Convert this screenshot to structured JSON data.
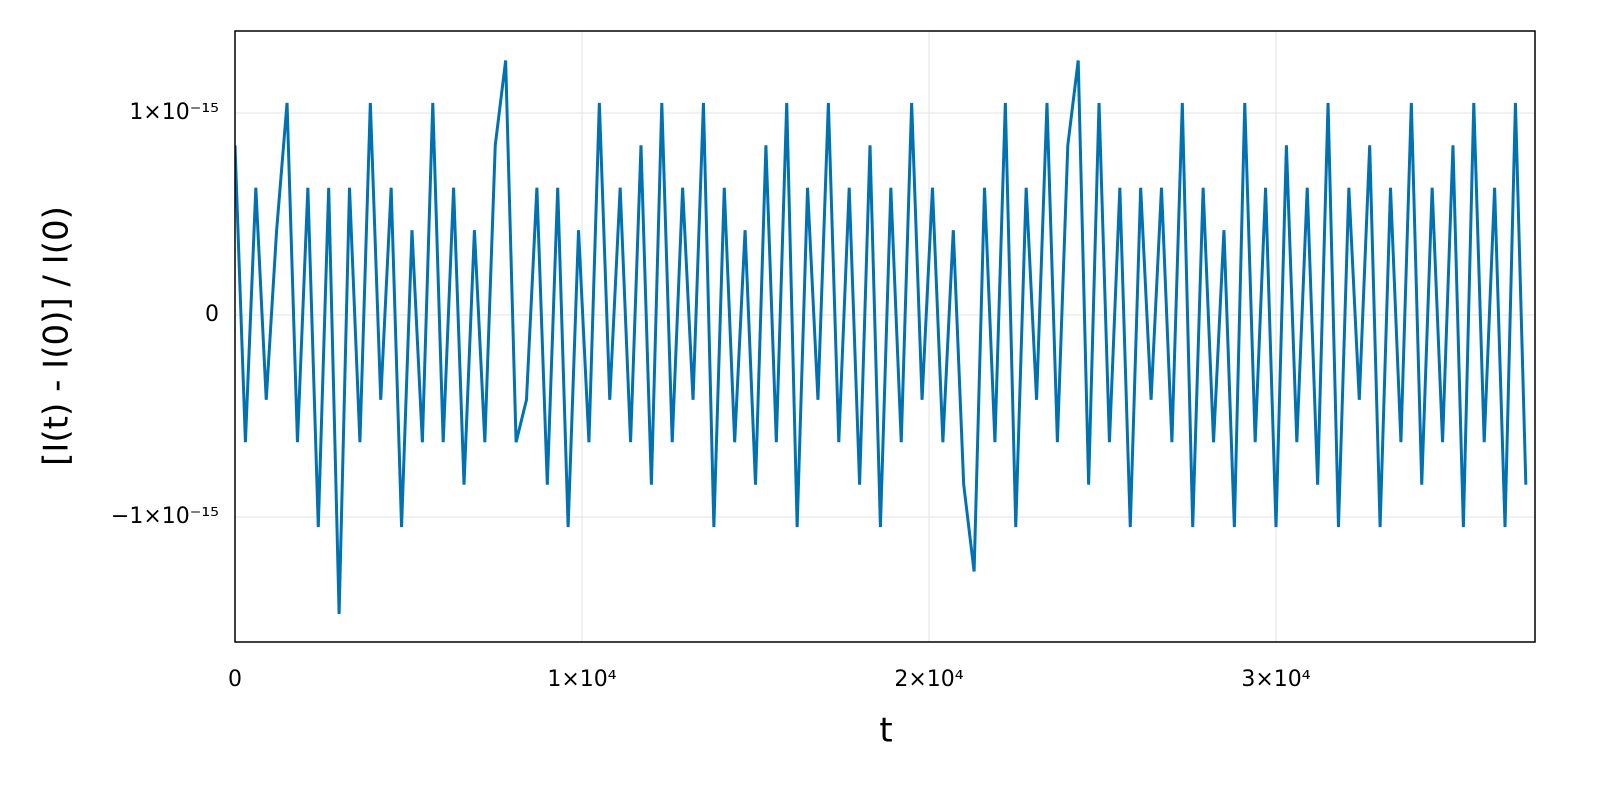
{
  "chart_data": {
    "type": "line",
    "xlabel": "t",
    "ylabel": "[I(t) - I(0)] / I(0)",
    "xlim": [
      0,
      37464
    ],
    "ylim": [
      -1.619e-15,
      1.406e-15
    ],
    "xticks": [
      0,
      {
        "value": 10000,
        "label": "1×10⁴"
      },
      {
        "value": 20000,
        "label": "2×10⁴"
      },
      {
        "value": 30000,
        "label": "3×10⁴"
      }
    ],
    "yticks": [
      {
        "value": -1e-15,
        "label": "−1×10⁻¹⁵"
      },
      0,
      {
        "value": 1e-15,
        "label": "1×10⁻¹⁵"
      }
    ],
    "grid": true,
    "x": [
      0,
      300,
      600,
      900,
      1200,
      1500,
      1800,
      2100,
      2400,
      2700,
      3000,
      3300,
      3600,
      3900,
      4200,
      4500,
      4800,
      5100,
      5400,
      5700,
      6000,
      6300,
      6600,
      6900,
      7200,
      7500,
      7800,
      8100,
      8400,
      8700,
      9000,
      9300,
      9600,
      9900,
      10200,
      10500,
      10800,
      11100,
      11400,
      11700,
      12000,
      12300,
      12600,
      12900,
      13200,
      13500,
      13800,
      14100,
      14400,
      14700,
      15000,
      15300,
      15600,
      15900,
      16200,
      16500,
      16800,
      17100,
      17400,
      17700,
      18000,
      18300,
      18600,
      18900,
      19200,
      19500,
      19800,
      20100,
      20400,
      20700,
      21000,
      21300,
      21600,
      21900,
      22200,
      22500,
      22800,
      23100,
      23400,
      23700,
      24000,
      24300,
      24600,
      24900,
      25200,
      25500,
      25800,
      26100,
      26400,
      26700,
      27000,
      27300,
      27600,
      27900,
      28200,
      28500,
      28800,
      29100,
      29400,
      29700,
      30000,
      30300,
      30600,
      30900,
      31200,
      31500,
      31800,
      32100,
      32400,
      32700,
      33000,
      33300,
      33600,
      33900,
      34200,
      34500,
      34800,
      35100,
      35400,
      35700,
      36000,
      36300,
      36600,
      36900,
      37200
    ],
    "series": [
      {
        "color": "#0072b2",
        "values": [
          8.4e-16,
          -6.3e-16,
          6.3e-16,
          -4.2e-16,
          4.2e-16,
          1.05e-15,
          -6.3e-16,
          6.3e-16,
          -1.05e-15,
          6.3e-16,
          -1.48e-15,
          6.3e-16,
          -6.3e-16,
          1.05e-15,
          -4.2e-16,
          6.3e-16,
          -1.05e-15,
          4.2e-16,
          -6.3e-16,
          1.05e-15,
          -6.3e-16,
          6.3e-16,
          -8.4e-16,
          4.2e-16,
          -6.3e-16,
          8.4e-16,
          1.26e-15,
          -6.3e-16,
          -4.2e-16,
          6.3e-16,
          -8.4e-16,
          6.3e-16,
          -1.05e-15,
          4.2e-16,
          -6.3e-16,
          1.05e-15,
          -4.2e-16,
          6.3e-16,
          -6.3e-16,
          8.4e-16,
          -8.4e-16,
          1.05e-15,
          -6.3e-16,
          6.3e-16,
          -4.2e-16,
          1.05e-15,
          -1.05e-15,
          6.3e-16,
          -6.3e-16,
          4.2e-16,
          -8.4e-16,
          8.4e-16,
          -6.3e-16,
          1.05e-15,
          -1.05e-15,
          6.3e-16,
          -4.2e-16,
          1.05e-15,
          -6.3e-16,
          6.3e-16,
          -8.4e-16,
          8.4e-16,
          -1.05e-15,
          6.3e-16,
          -6.3e-16,
          1.05e-15,
          -4.2e-16,
          6.3e-16,
          -6.3e-16,
          4.2e-16,
          -8.4e-16,
          -1.27e-15,
          6.3e-16,
          -6.3e-16,
          1.05e-15,
          -1.05e-15,
          6.3e-16,
          -4.2e-16,
          1.05e-15,
          -6.3e-16,
          8.4e-16,
          1.26e-15,
          -8.4e-16,
          1.05e-15,
          -6.3e-16,
          6.3e-16,
          -1.05e-15,
          6.3e-16,
          -4.2e-16,
          6.3e-16,
          -6.3e-16,
          1.05e-15,
          -1.05e-15,
          6.3e-16,
          -6.3e-16,
          4.2e-16,
          -1.05e-15,
          1.05e-15,
          -6.3e-16,
          6.3e-16,
          -1.05e-15,
          8.4e-16,
          -6.3e-16,
          6.3e-16,
          -8.4e-16,
          1.05e-15,
          -1.05e-15,
          6.3e-16,
          -4.2e-16,
          8.4e-16,
          -1.05e-15,
          6.3e-16,
          -6.3e-16,
          1.05e-15,
          -8.4e-16,
          6.3e-16,
          -6.3e-16,
          8.4e-16,
          -1.05e-15,
          1.05e-15,
          -6.3e-16,
          6.3e-16,
          -1.05e-15,
          1.05e-15,
          -8.4e-16
        ]
      }
    ]
  }
}
